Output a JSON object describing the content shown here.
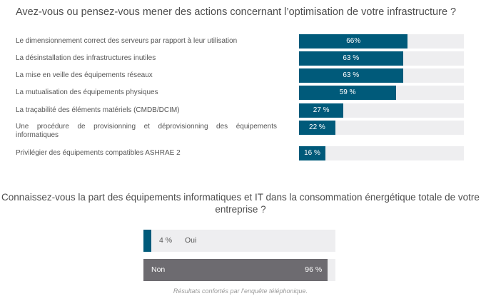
{
  "chart_data": [
    {
      "type": "bar",
      "orientation": "horizontal",
      "title": "Avez-vous ou pensez-vous mener des actions concernant l’optimisation de votre infrastructure ?",
      "categories": [
        "Le dimensionnement correct des serveurs par rapport à leur utilisation",
        "La désinstallation des infrastructures inutiles",
        "La mise en veille des équipements réseaux",
        "La mutualisation des équipements physiques",
        "La traçabilité des éléments matériels (CMDB/DCIM)",
        "Une procédure de provisionning et déprovisionning des équipements informatiques",
        "Privilégier des équipements compatibles ASHRAE 2"
      ],
      "values": [
        66,
        63,
        63,
        59,
        27,
        22,
        16
      ],
      "value_labels": [
        "66%",
        "63 %",
        "63 %",
        "59 %",
        "27 %",
        "22 %",
        "16 %"
      ],
      "xlim": [
        0,
        100
      ],
      "bar_color": "#005a7a",
      "track_color": "#eeeef0"
    },
    {
      "type": "bar",
      "orientation": "horizontal",
      "title": "Connaissez-vous la part des équipements informatiques et IT dans la consommation énergétique totale de votre entreprise ?",
      "categories": [
        "Oui",
        "Non"
      ],
      "values": [
        4,
        96
      ],
      "value_labels": [
        "4 %",
        "96 %"
      ],
      "xlim": [
        0,
        100
      ],
      "colors": [
        "#005a7a",
        "#6d6b70"
      ],
      "track_color": "#eeeef0"
    }
  ],
  "footnote": "Résultats confortés par l’enquête téléphonique."
}
